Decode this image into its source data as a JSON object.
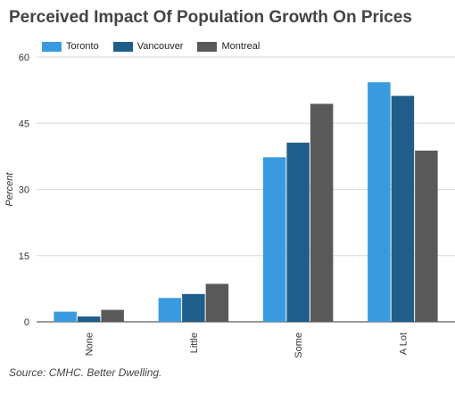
{
  "chart_data": {
    "type": "bar",
    "title": "Perceived Impact Of Population Growth On Prices",
    "xlabel": "",
    "ylabel": "Percent",
    "categories": [
      "None",
      "Little",
      "Some",
      "A Lot"
    ],
    "series": [
      {
        "name": "Toronto",
        "color": "#3a9ae0",
        "values": [
          2.3,
          5.4,
          37.3,
          54.3
        ]
      },
      {
        "name": "Vancouver",
        "color": "#1f5e8a",
        "values": [
          1.2,
          6.3,
          40.6,
          51.2
        ]
      },
      {
        "name": "Montreal",
        "color": "#595959",
        "values": [
          2.7,
          8.6,
          49.4,
          38.8
        ]
      }
    ],
    "ylim": [
      0,
      60
    ],
    "yticks": [
      0,
      15,
      30,
      45,
      60
    ],
    "grid": true,
    "legend_position": "top-left"
  },
  "source": "Source: CMHC. Better Dwelling."
}
